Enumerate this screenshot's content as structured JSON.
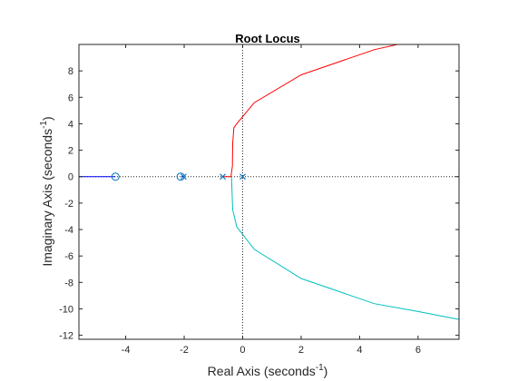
{
  "chart_data": {
    "type": "line",
    "title": "Root Locus",
    "xlabel": {
      "main": "Real Axis (seconds",
      "sup": "-1",
      "close": ")"
    },
    "ylabel": {
      "main": "Imaginary Axis (seconds",
      "sup": "-1",
      "close": ")"
    },
    "xlim": [
      -5.6,
      7.4
    ],
    "ylim": [
      -12.3,
      10.0
    ],
    "xticks": [
      -4,
      -2,
      0,
      2,
      4,
      6
    ],
    "xtick_labels": [
      "-4",
      "-2",
      "0",
      "2",
      "4",
      "6"
    ],
    "yticks": [
      -12,
      -10,
      -8,
      -6,
      -4,
      -2,
      0,
      2,
      4,
      6,
      8
    ],
    "ytick_labels": [
      "-12",
      "-10",
      "-8",
      "-6",
      "-4",
      "-2",
      "0",
      "2",
      "4",
      "6",
      "8"
    ],
    "grid": false,
    "series": [
      {
        "color": "#0000ff",
        "x": [
          -5.6,
          -4.35
        ],
        "y": [
          0,
          0
        ]
      },
      {
        "color": "#0000ff",
        "x": [
          -2.1,
          -2.05
        ],
        "y": [
          0,
          0
        ]
      },
      {
        "color": "#ff0000",
        "x": [
          -0.65,
          -0.4,
          -0.35,
          -0.34,
          -0.3,
          -0.2,
          0.4,
          2.0,
          4.5,
          5.3
        ],
        "y": [
          0,
          0,
          0.8,
          2.5,
          3.7,
          4.0,
          5.6,
          7.7,
          9.6,
          10.0
        ]
      },
      {
        "color": "#00bfbf",
        "x": [
          -0.38,
          -0.37,
          -0.34,
          -0.2,
          0.4,
          2.0,
          4.5,
          6.0,
          7.4
        ],
        "y": [
          0,
          -0.8,
          -2.5,
          -3.8,
          -5.5,
          -7.7,
          -9.6,
          -10.2,
          -10.8
        ]
      }
    ],
    "poles": [
      {
        "x": -2.02,
        "y": 0
      },
      {
        "x": -0.68,
        "y": 0
      },
      {
        "x": 0,
        "y": 0
      }
    ],
    "zeros": [
      {
        "x": -4.35,
        "y": 0
      },
      {
        "x": -2.12,
        "y": 0
      }
    ],
    "marker_color": "#0072bd"
  }
}
